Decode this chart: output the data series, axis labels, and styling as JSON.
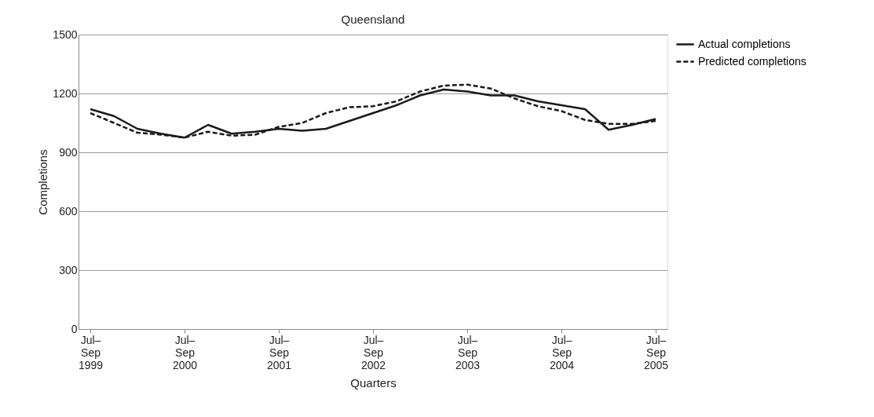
{
  "chart_data": {
    "type": "line",
    "title": "Queensland",
    "xlabel": "Quarters",
    "ylabel": "Completions",
    "categories": [
      "Jul–Sep 1999",
      null,
      null,
      null,
      "Jul–Sep 2000",
      null,
      null,
      null,
      "Jul–Sep 2001",
      null,
      null,
      null,
      "Jul–Sep 2002",
      null,
      null,
      null,
      "Jul–Sep 2003",
      null,
      null,
      null,
      "Jul–Sep 2004",
      null,
      null,
      null,
      "Jul–Sep 2005"
    ],
    "series": [
      {
        "name": "Actual completions",
        "color": "#1a1a1a",
        "line_style": "solid",
        "values": [
          1120,
          1085,
          1020,
          995,
          975,
          1040,
          995,
          1005,
          1020,
          1010,
          1020,
          1060,
          1100,
          1140,
          1190,
          1220,
          1210,
          1190,
          1190,
          1160,
          1140,
          1120,
          1015,
          1040,
          1070
        ]
      },
      {
        "name": "Predicted completions",
        "color": "#1a1a1a",
        "line_style": "dashed",
        "values": [
          1100,
          1050,
          1000,
          990,
          975,
          1005,
          985,
          990,
          1030,
          1050,
          1100,
          1130,
          1135,
          1160,
          1210,
          1240,
          1245,
          1225,
          1175,
          1135,
          1110,
          1065,
          1045,
          1045,
          1060
        ]
      }
    ],
    "ylim": [
      0,
      1500
    ],
    "yticks": [
      0,
      300,
      600,
      900,
      1200,
      1500
    ],
    "grid": "y",
    "legend": "top right",
    "marker": "none"
  }
}
